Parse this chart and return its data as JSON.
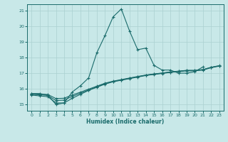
{
  "xlabel": "Humidex (Indice chaleur)",
  "ylabel": "",
  "background_color": "#c8e8e8",
  "line_color": "#1a6b6b",
  "grid_color": "#aad0d0",
  "xlim": [
    -0.5,
    23.5
  ],
  "ylim": [
    14.6,
    21.4
  ],
  "yticks": [
    15,
    16,
    17,
    18,
    19,
    20,
    21
  ],
  "xticks": [
    0,
    1,
    2,
    3,
    4,
    5,
    6,
    7,
    8,
    9,
    10,
    11,
    12,
    13,
    14,
    15,
    16,
    17,
    18,
    19,
    20,
    21,
    22,
    23
  ],
  "series": [
    {
      "x": [
        0,
        1,
        2,
        3,
        4,
        5,
        6,
        7,
        8,
        9,
        10,
        11,
        12,
        13,
        14,
        15,
        16,
        17,
        18,
        19,
        20,
        21
      ],
      "y": [
        15.7,
        15.7,
        15.6,
        15.0,
        15.1,
        15.8,
        16.2,
        16.7,
        18.3,
        19.4,
        20.6,
        21.1,
        19.7,
        18.5,
        18.6,
        17.5,
        17.2,
        17.2,
        17.0,
        17.0,
        17.1,
        17.4
      ]
    },
    {
      "x": [
        0,
        1,
        2,
        3,
        4,
        5,
        6,
        7,
        8,
        9,
        10,
        11,
        12,
        13,
        14,
        15,
        16,
        17,
        18,
        19,
        20,
        21,
        22,
        23
      ],
      "y": [
        15.6,
        15.55,
        15.5,
        15.1,
        15.1,
        15.4,
        15.65,
        15.9,
        16.1,
        16.3,
        16.45,
        16.55,
        16.65,
        16.75,
        16.85,
        16.92,
        16.98,
        17.05,
        17.1,
        17.15,
        17.15,
        17.2,
        17.35,
        17.45
      ]
    },
    {
      "x": [
        0,
        1,
        2,
        3,
        4,
        5,
        6,
        7,
        8,
        9,
        10,
        11,
        12,
        13,
        14,
        15,
        16,
        17,
        18,
        19,
        20,
        21,
        22,
        23
      ],
      "y": [
        15.65,
        15.62,
        15.58,
        15.25,
        15.28,
        15.52,
        15.72,
        15.93,
        16.13,
        16.33,
        16.47,
        16.57,
        16.67,
        16.77,
        16.87,
        16.94,
        17.0,
        17.07,
        17.12,
        17.17,
        17.17,
        17.22,
        17.37,
        17.47
      ]
    },
    {
      "x": [
        0,
        1,
        2,
        3,
        4,
        5,
        6,
        7,
        8,
        9,
        10,
        11,
        12,
        13,
        14,
        15,
        16,
        17,
        18,
        19,
        20,
        21,
        22,
        23
      ],
      "y": [
        15.68,
        15.66,
        15.64,
        15.38,
        15.4,
        15.61,
        15.79,
        15.98,
        16.17,
        16.36,
        16.49,
        16.59,
        16.69,
        16.79,
        16.88,
        16.95,
        17.01,
        17.08,
        17.13,
        17.18,
        17.18,
        17.23,
        17.38,
        17.48
      ]
    }
  ]
}
